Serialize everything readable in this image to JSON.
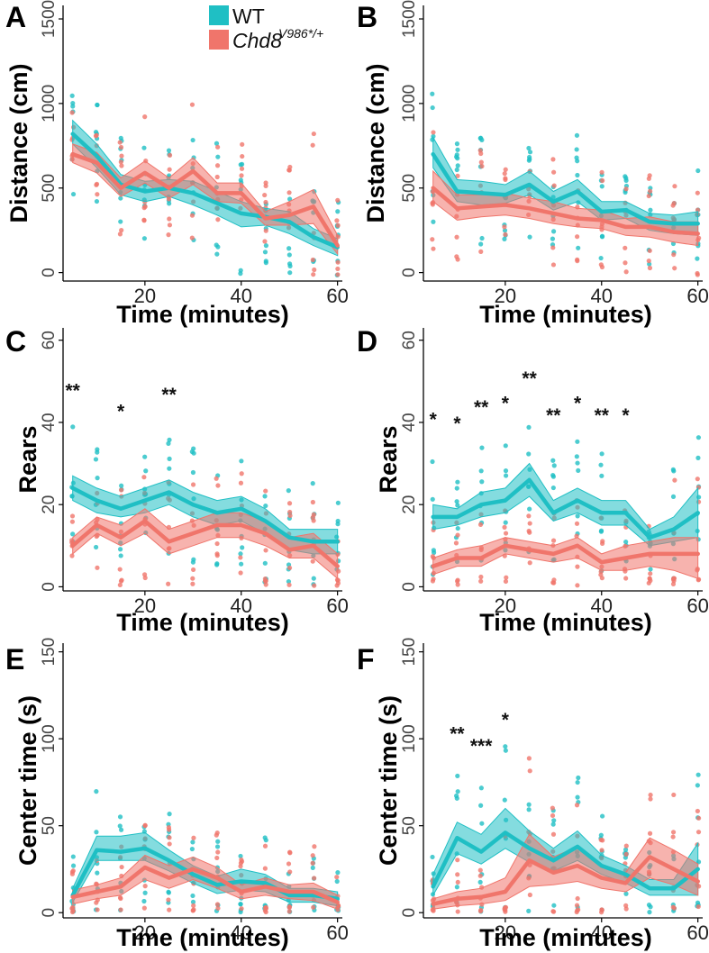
{
  "legend": {
    "wt_label": "WT",
    "mut_label": "Chd8",
    "mut_sup": "V986*/+"
  },
  "colors": {
    "wt": "#1fbfc4",
    "mut": "#f0756b"
  },
  "chart_data": [
    {
      "panel": "A",
      "type": "line",
      "ylabel": "Distance (cm)",
      "xlabel": "Time (minutes)",
      "xlim": [
        3,
        61
      ],
      "ylim": [
        -50,
        1580
      ],
      "yticks": [
        0,
        500,
        1000,
        1500
      ],
      "xticks": [
        20,
        40,
        60
      ],
      "x": [
        5,
        10,
        15,
        20,
        25,
        30,
        35,
        40,
        45,
        50,
        55,
        60
      ],
      "series": [
        {
          "name": "WT",
          "mean": [
            820,
            690,
            520,
            480,
            500,
            470,
            410,
            350,
            330,
            300,
            210,
            150
          ],
          "lower": [
            760,
            620,
            460,
            420,
            450,
            400,
            340,
            270,
            280,
            230,
            160,
            100
          ],
          "upper": [
            900,
            760,
            580,
            540,
            550,
            540,
            480,
            420,
            380,
            360,
            260,
            200
          ]
        },
        {
          "name": "Chd8 V986*/+",
          "mean": [
            700,
            650,
            500,
            590,
            500,
            600,
            470,
            470,
            320,
            340,
            390,
            160
          ],
          "lower": [
            650,
            590,
            450,
            530,
            440,
            520,
            420,
            410,
            280,
            280,
            290,
            110
          ],
          "upper": [
            760,
            710,
            560,
            660,
            560,
            680,
            530,
            530,
            360,
            420,
            490,
            220
          ]
        }
      ],
      "annotations": []
    },
    {
      "panel": "B",
      "type": "line",
      "ylabel": "Distance (cm)",
      "xlabel": "Time (minutes)",
      "xlim": [
        3,
        61
      ],
      "ylim": [
        -50,
        1580
      ],
      "yticks": [
        0,
        500,
        1000,
        1500
      ],
      "xticks": [
        20,
        40,
        60
      ],
      "x": [
        5,
        10,
        15,
        20,
        25,
        30,
        35,
        40,
        45,
        50,
        55,
        60
      ],
      "series": [
        {
          "name": "WT",
          "mean": [
            700,
            480,
            470,
            460,
            520,
            420,
            480,
            360,
            370,
            300,
            290,
            290
          ],
          "lower": [
            620,
            420,
            400,
            410,
            460,
            370,
            420,
            310,
            320,
            250,
            230,
            220
          ],
          "upper": [
            800,
            550,
            540,
            520,
            600,
            480,
            550,
            420,
            420,
            350,
            340,
            360
          ]
        },
        {
          "name": "Chd8 V986*/+",
          "mean": [
            500,
            380,
            390,
            400,
            380,
            350,
            320,
            310,
            270,
            270,
            240,
            230
          ],
          "lower": [
            420,
            310,
            330,
            340,
            320,
            290,
            270,
            260,
            220,
            210,
            180,
            160
          ],
          "upper": [
            600,
            460,
            460,
            470,
            440,
            420,
            380,
            370,
            320,
            330,
            300,
            300
          ]
        }
      ],
      "annotations": []
    },
    {
      "panel": "C",
      "type": "line",
      "ylabel": "Rears",
      "xlabel": "Time (minutes)",
      "xlim": [
        3,
        61
      ],
      "ylim": [
        -1,
        63
      ],
      "yticks": [
        0,
        20,
        40,
        60
      ],
      "xticks": [
        20,
        40,
        60
      ],
      "x": [
        5,
        10,
        15,
        20,
        25,
        30,
        35,
        40,
        45,
        50,
        55,
        60
      ],
      "series": [
        {
          "name": "WT",
          "mean": [
            24,
            21,
            19,
            21,
            23,
            20,
            18,
            19,
            16,
            12,
            11,
            11
          ],
          "lower": [
            21,
            18,
            17,
            18,
            20,
            17,
            15,
            16,
            13,
            9,
            8,
            8
          ],
          "upper": [
            27,
            24,
            22,
            24,
            26,
            23,
            21,
            22,
            19,
            14,
            14,
            14
          ]
        },
        {
          "name": "Chd8 V986*/+",
          "mean": [
            10,
            15,
            12,
            16,
            11,
            13,
            15,
            15,
            13,
            9,
            10,
            5
          ],
          "lower": [
            8,
            13,
            10,
            13,
            8,
            10,
            12,
            12,
            10,
            7,
            7,
            2
          ],
          "upper": [
            12,
            17,
            15,
            19,
            14,
            16,
            18,
            18,
            16,
            12,
            13,
            8
          ]
        }
      ],
      "annotations": [
        {
          "x": 5,
          "label": "**"
        },
        {
          "x": 15,
          "label": "*"
        },
        {
          "x": 25,
          "label": "**"
        }
      ]
    },
    {
      "panel": "D",
      "type": "line",
      "ylabel": "Rears",
      "xlabel": "Time (minutes)",
      "xlim": [
        3,
        61
      ],
      "ylim": [
        -1,
        63
      ],
      "yticks": [
        0,
        20,
        40,
        60
      ],
      "xticks": [
        20,
        40,
        60
      ],
      "x": [
        5,
        10,
        15,
        20,
        25,
        30,
        35,
        40,
        45,
        50,
        55,
        60
      ],
      "series": [
        {
          "name": "WT",
          "mean": [
            17,
            17,
            20,
            21,
            26,
            18,
            21,
            18,
            18,
            12,
            14,
            18
          ],
          "lower": [
            14,
            15,
            17,
            18,
            22,
            16,
            18,
            15,
            15,
            10,
            11,
            12
          ],
          "upper": [
            20,
            19,
            23,
            24,
            30,
            21,
            24,
            21,
            21,
            14,
            17,
            24
          ]
        },
        {
          "name": "Chd8 V986*/+",
          "mean": [
            5,
            7,
            7,
            10,
            9,
            8,
            10,
            6,
            7,
            8,
            8,
            8
          ],
          "lower": [
            3,
            5,
            5,
            8,
            7,
            6,
            7,
            4,
            4,
            5,
            4,
            2
          ],
          "upper": [
            7,
            9,
            10,
            12,
            11,
            10,
            12,
            8,
            10,
            11,
            12,
            12
          ]
        }
      ],
      "annotations": [
        {
          "x": 5,
          "label": "*"
        },
        {
          "x": 10,
          "label": "*"
        },
        {
          "x": 15,
          "label": "**"
        },
        {
          "x": 20,
          "label": "*"
        },
        {
          "x": 25,
          "label": "**"
        },
        {
          "x": 30,
          "label": "**"
        },
        {
          "x": 35,
          "label": "*"
        },
        {
          "x": 40,
          "label": "**"
        },
        {
          "x": 45,
          "label": "*"
        }
      ]
    },
    {
      "panel": "E",
      "type": "line",
      "ylabel": "Center time (s)",
      "xlabel": "Time (minutes)",
      "xlim": [
        3,
        61
      ],
      "ylim": [
        -3,
        155
      ],
      "yticks": [
        0,
        50,
        100,
        150
      ],
      "xticks": [
        20,
        40,
        60
      ],
      "x": [
        5,
        10,
        15,
        20,
        25,
        30,
        35,
        40,
        45,
        50,
        55,
        60
      ],
      "series": [
        {
          "name": "WT",
          "mean": [
            10,
            36,
            35,
            37,
            30,
            22,
            16,
            18,
            17,
            10,
            10,
            8
          ],
          "lower": [
            6,
            30,
            30,
            30,
            24,
            17,
            11,
            13,
            12,
            6,
            6,
            4
          ],
          "upper": [
            14,
            44,
            44,
            46,
            36,
            27,
            21,
            25,
            22,
            14,
            14,
            12
          ]
        },
        {
          "name": "Chd8 V986*/+",
          "mean": [
            9,
            12,
            15,
            26,
            20,
            25,
            20,
            12,
            15,
            12,
            12,
            6
          ],
          "lower": [
            5,
            8,
            10,
            19,
            14,
            19,
            14,
            8,
            10,
            8,
            7,
            2
          ],
          "upper": [
            13,
            16,
            20,
            33,
            27,
            32,
            26,
            16,
            20,
            16,
            17,
            10
          ]
        }
      ],
      "annotations": []
    },
    {
      "panel": "F",
      "type": "line",
      "ylabel": "Center time (s)",
      "xlabel": "Time (minutes)",
      "xlim": [
        3,
        61
      ],
      "ylim": [
        -3,
        155
      ],
      "yticks": [
        0,
        50,
        100,
        150
      ],
      "xticks": [
        20,
        40,
        60
      ],
      "x": [
        5,
        10,
        15,
        20,
        25,
        30,
        35,
        40,
        45,
        50,
        55,
        60
      ],
      "series": [
        {
          "name": "WT",
          "mean": [
            15,
            43,
            35,
            46,
            37,
            30,
            38,
            27,
            22,
            14,
            14,
            25
          ],
          "lower": [
            10,
            34,
            28,
            37,
            29,
            24,
            30,
            22,
            17,
            10,
            10,
            10
          ],
          "upper": [
            22,
            52,
            45,
            60,
            47,
            37,
            47,
            33,
            27,
            19,
            19,
            40
          ]
        },
        {
          "name": "Chd8 V986*/+",
          "mean": [
            5,
            8,
            9,
            12,
            30,
            23,
            27,
            20,
            17,
            32,
            25,
            18
          ],
          "lower": [
            2,
            4,
            5,
            7,
            15,
            16,
            18,
            14,
            12,
            20,
            16,
            10
          ],
          "upper": [
            8,
            12,
            14,
            20,
            45,
            32,
            38,
            26,
            23,
            43,
            36,
            28
          ]
        }
      ],
      "annotations": [
        {
          "x": 10,
          "label": "**"
        },
        {
          "x": 15,
          "label": "***"
        },
        {
          "x": 20,
          "label": "*"
        }
      ]
    }
  ]
}
